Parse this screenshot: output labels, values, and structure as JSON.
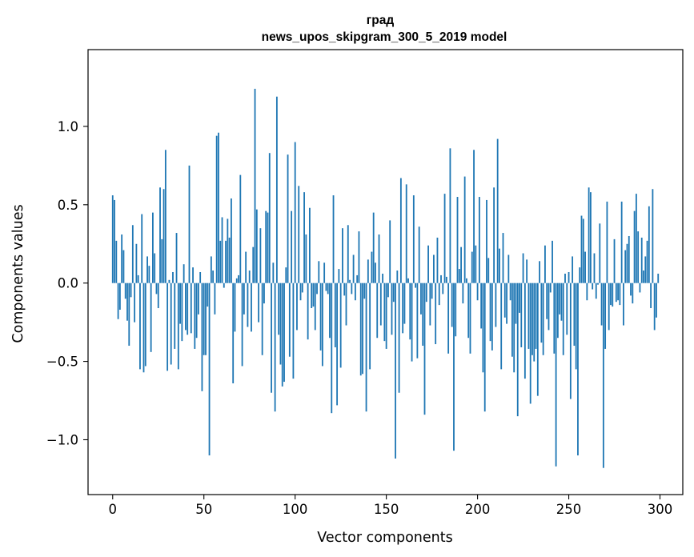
{
  "chart_data": {
    "type": "bar",
    "title": "град",
    "subtitle": "news_upos_skipgram_300_5_2019 model",
    "xlabel": "Vector components",
    "ylabel": "Components values",
    "xlim": [
      -13.5,
      312.5
    ],
    "ylim": [
      -1.35,
      1.49
    ],
    "grid": false,
    "color": "#1f77b4",
    "x_ticks": [
      0,
      50,
      100,
      150,
      200,
      250,
      300
    ],
    "x_tick_labels": [
      "0",
      "50",
      "100",
      "150",
      "200",
      "250",
      "300"
    ],
    "y_ticks": [
      -1.0,
      -0.5,
      0.0,
      0.5,
      1.0
    ],
    "y_tick_labels": [
      "−1.0",
      "−0.5",
      "0.0",
      "0.5",
      "1.0"
    ],
    "values": [
      0.56,
      0.53,
      0.27,
      -0.23,
      -0.17,
      0.31,
      0.21,
      -0.1,
      -0.24,
      -0.4,
      -0.09,
      0.37,
      -0.25,
      0.25,
      0.05,
      -0.55,
      0.44,
      -0.57,
      -0.53,
      0.17,
      0.11,
      -0.44,
      0.45,
      0.19,
      -0.07,
      -0.16,
      0.61,
      0.28,
      0.6,
      0.85,
      -0.56,
      0.02,
      -0.52,
      0.07,
      -0.42,
      0.32,
      -0.55,
      -0.26,
      -0.37,
      0.12,
      -0.3,
      -0.33,
      0.75,
      -0.32,
      0.1,
      -0.42,
      -0.35,
      -0.2,
      0.07,
      -0.69,
      -0.46,
      -0.46,
      -0.15,
      -1.1,
      0.17,
      0.08,
      -0.2,
      0.94,
      0.96,
      0.27,
      0.42,
      -0.03,
      0.27,
      0.41,
      0.29,
      0.54,
      -0.64,
      -0.31,
      0.03,
      0.05,
      0.69,
      -0.53,
      -0.2,
      0.2,
      -0.28,
      0.08,
      -0.31,
      0.23,
      1.24,
      0.47,
      -0.25,
      0.35,
      -0.46,
      -0.13,
      0.46,
      0.45,
      0.83,
      -0.7,
      0.13,
      -0.82,
      1.19,
      -0.33,
      -0.52,
      -0.66,
      -0.63,
      0.1,
      0.82,
      -0.47,
      0.46,
      -0.61,
      0.9,
      -0.3,
      0.62,
      -0.11,
      -0.06,
      0.58,
      0.31,
      -0.36,
      0.48,
      -0.16,
      -0.15,
      -0.3,
      -0.07,
      0.14,
      -0.43,
      -0.53,
      0.13,
      -0.05,
      -0.07,
      -0.35,
      -0.83,
      0.56,
      -0.41,
      -0.78,
      0.09,
      -0.54,
      0.35,
      -0.08,
      -0.27,
      0.37,
      0.02,
      -0.07,
      0.18,
      -0.11,
      0.05,
      0.33,
      -0.59,
      -0.58,
      -0.1,
      -0.82,
      0.15,
      -0.55,
      0.2,
      0.45,
      0.13,
      -0.35,
      0.31,
      -0.27,
      0.06,
      -0.37,
      -0.42,
      -0.09,
      0.4,
      -0.33,
      -0.12,
      -1.12,
      0.08,
      -0.7,
      0.67,
      -0.32,
      -0.26,
      0.63,
      0.03,
      -0.36,
      -0.5,
      0.56,
      -0.03,
      -0.48,
      0.36,
      -0.2,
      -0.4,
      -0.84,
      -0.12,
      0.24,
      -0.27,
      -0.1,
      0.18,
      -0.39,
      0.29,
      -0.14,
      0.05,
      -0.07,
      0.57,
      0.04,
      -0.45,
      0.86,
      -0.28,
      -1.07,
      -0.34,
      0.55,
      0.09,
      0.23,
      -0.13,
      0.68,
      0.03,
      -0.35,
      -0.45,
      0.2,
      0.85,
      0.24,
      -0.11,
      0.55,
      -0.29,
      -0.57,
      -0.82,
      0.53,
      0.16,
      -0.37,
      -0.43,
      0.61,
      -0.28,
      0.92,
      0.22,
      -0.55,
      0.32,
      -0.22,
      -0.26,
      0.18,
      -0.11,
      -0.47,
      -0.57,
      -0.26,
      -0.85,
      -0.19,
      -0.41,
      0.19,
      -0.61,
      0.15,
      -0.42,
      -0.77,
      -0.46,
      -0.5,
      -0.42,
      -0.72,
      0.14,
      -0.38,
      -0.46,
      0.24,
      -0.23,
      -0.3,
      -0.06,
      0.27,
      -0.45,
      -1.17,
      -0.35,
      -0.2,
      -0.24,
      -0.46,
      0.06,
      -0.33,
      0.07,
      -0.74,
      0.17,
      -0.4,
      -0.55,
      -1.1,
      0.1,
      0.43,
      0.41,
      0.2,
      -0.11,
      0.61,
      0.58,
      -0.04,
      0.19,
      -0.1,
      -0.01,
      0.38,
      -0.27,
      -1.18,
      -0.42,
      0.52,
      -0.3,
      -0.14,
      -0.15,
      0.28,
      -0.12,
      -0.11,
      -0.14,
      0.52,
      -0.27,
      0.21,
      0.25,
      0.3,
      -0.08,
      -0.13,
      0.46,
      0.57,
      0.33,
      -0.06,
      0.29,
      0.08,
      0.17,
      0.27,
      0.49,
      -0.16,
      0.6,
      -0.3,
      -0.22,
      0.06
    ]
  }
}
